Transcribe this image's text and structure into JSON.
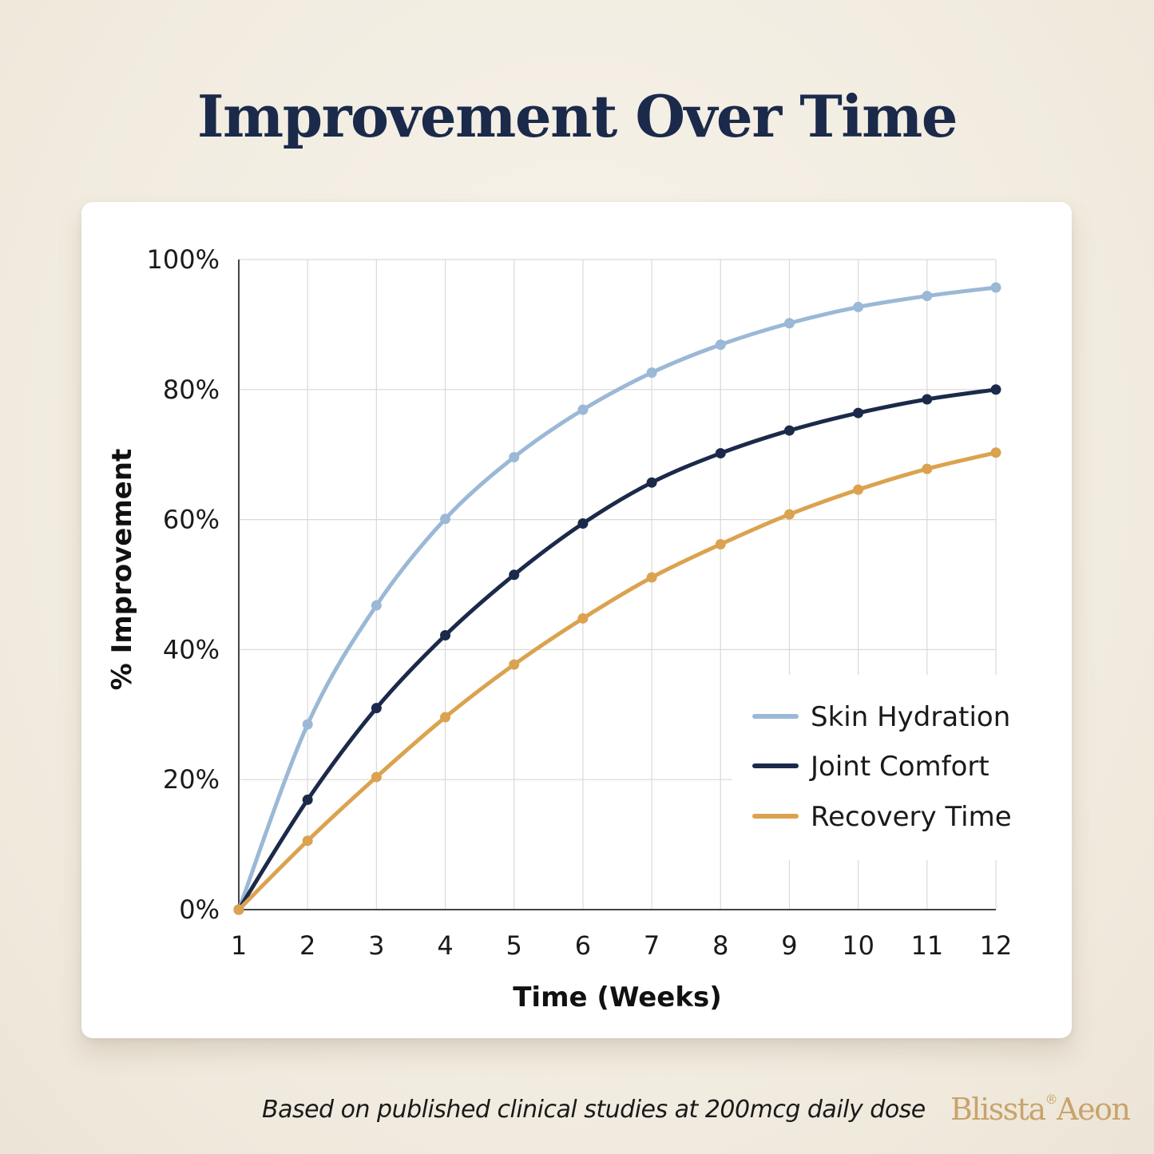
{
  "title": "Improvement Over Time",
  "footnote": "Based on published clinical studies at 200mcg daily dose",
  "logo": {
    "left": "Blissta",
    "mark": "®",
    "right": "Aeon"
  },
  "colors": {
    "skin": "#9bb8d6",
    "joint": "#1b2a4a",
    "recovery": "#dba24f",
    "grid": "#d9d9d9",
    "axis": "#444444",
    "title": "#1b2a4a",
    "logo": "#c8a36b"
  },
  "chart_data": {
    "type": "line",
    "xlabel": "Time (Weeks)",
    "ylabel": "% Improvement",
    "x": [
      1,
      2,
      3,
      4,
      5,
      6,
      7,
      8,
      9,
      10,
      11,
      12
    ],
    "xlim": [
      1,
      12
    ],
    "ylim": [
      0,
      100
    ],
    "yticks": [
      0,
      20,
      40,
      60,
      80,
      100
    ],
    "ytick_labels": [
      "0%",
      "20%",
      "40%",
      "60%",
      "80%",
      "100%"
    ],
    "xtick_labels": [
      "1",
      "2",
      "3",
      "4",
      "5",
      "6",
      "7",
      "8",
      "9",
      "10",
      "11",
      "12"
    ],
    "grid": true,
    "legend_position": "bottom-right",
    "series": [
      {
        "name": "Skin Hydration",
        "color": "#9bb8d6",
        "values": [
          0,
          28.5,
          46.8,
          60.1,
          69.6,
          76.9,
          82.6,
          86.9,
          90.2,
          92.7,
          94.4,
          95.7
        ]
      },
      {
        "name": "Joint Comfort",
        "color": "#1b2a4a",
        "values": [
          0,
          16.9,
          31.0,
          42.2,
          51.5,
          59.4,
          65.7,
          70.2,
          73.7,
          76.4,
          78.5,
          80.0
        ]
      },
      {
        "name": "Recovery Time",
        "color": "#dba24f",
        "values": [
          0,
          10.6,
          20.4,
          29.6,
          37.7,
          44.8,
          51.1,
          56.2,
          60.8,
          64.6,
          67.8,
          70.3
        ]
      }
    ]
  }
}
